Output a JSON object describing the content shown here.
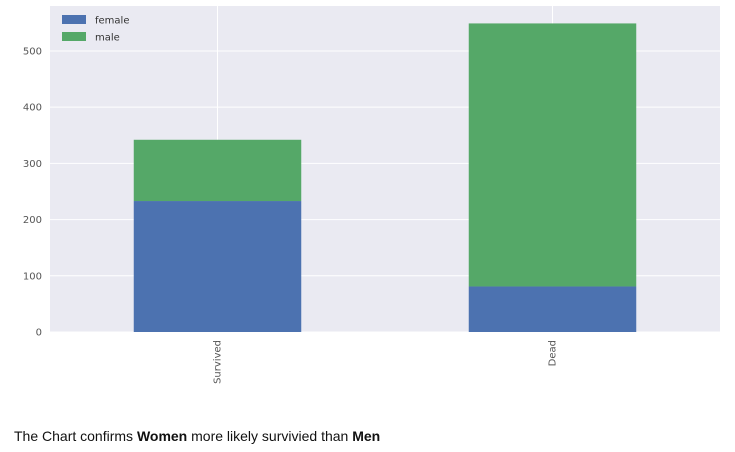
{
  "chart_data": {
    "type": "bar",
    "stacked": true,
    "categories": [
      "Survived",
      "Dead"
    ],
    "series": [
      {
        "name": "female",
        "values": [
          233,
          81
        ],
        "color": "#4C72B0"
      },
      {
        "name": "male",
        "values": [
          109,
          468
        ],
        "color": "#55A868"
      }
    ],
    "title": "",
    "xlabel": "",
    "ylabel": "",
    "ylim": [
      0,
      580
    ],
    "yticks": [
      0,
      100,
      200,
      300,
      400,
      500
    ],
    "grid": true,
    "legend": "top-left",
    "background": "#EAEAF2"
  },
  "caption": {
    "part1": "The Chart confirms ",
    "bold1": "Women",
    "part2": " more likely survivied than ",
    "bold2": "Men"
  }
}
